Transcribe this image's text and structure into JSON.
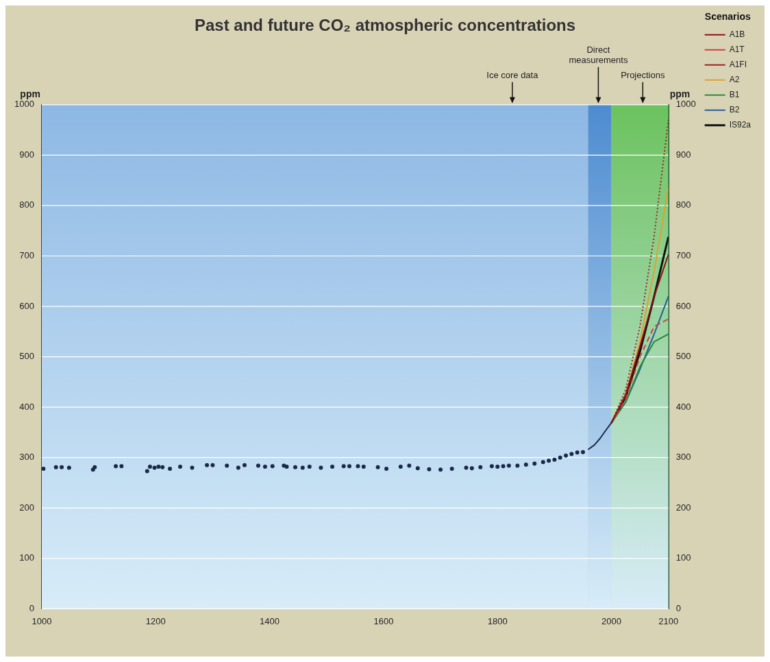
{
  "chart_data": {
    "type": "line",
    "title": "Past and future CO₂ atmospheric concentrations",
    "ylabel": "ppm",
    "y2label": "ppm",
    "legend_title": "Scenarios",
    "xlim": [
      1000,
      2100
    ],
    "xticks": [
      1000,
      1200,
      1400,
      1600,
      1800,
      2000,
      2100
    ],
    "ylim": [
      0,
      1000
    ],
    "yticks": [
      0,
      100,
      200,
      300,
      400,
      500,
      600,
      700,
      800,
      900,
      1000
    ],
    "y2lim": [
      0,
      1000
    ],
    "y2ticks": [
      0,
      100,
      200,
      300,
      400,
      500,
      600,
      700,
      800,
      900,
      1000
    ],
    "grid": "y",
    "legend": "top right",
    "bands": [
      {
        "axis": "x",
        "from": 1000,
        "to": 1959,
        "color": "#8db8e4"
      },
      {
        "axis": "x",
        "from": 1959,
        "to": 2000,
        "color": "#4d8bd0"
      },
      {
        "axis": "x",
        "from": 2000,
        "to": 2100,
        "color": "#6cc25e"
      }
    ],
    "annotations": [
      {
        "text": "Ice core data",
        "x": 1826,
        "y": 1000
      },
      {
        "text": "Direct measurements",
        "x": 1977,
        "y": 1000
      },
      {
        "text": "Projections",
        "x": 2055,
        "y": 1000
      }
    ],
    "series": [
      {
        "type": "scatter",
        "color": "#1a2a4a",
        "marker": "circle",
        "x": [
          1003,
          1025,
          1035,
          1048,
          1090,
          1093,
          1130,
          1140,
          1185,
          1190,
          1198,
          1205,
          1212,
          1225,
          1243,
          1264,
          1290,
          1300,
          1325,
          1345,
          1356,
          1380,
          1392,
          1405,
          1425,
          1430,
          1445,
          1458,
          1470,
          1490,
          1510,
          1530,
          1540,
          1555,
          1565,
          1590,
          1605,
          1630,
          1645,
          1660,
          1680,
          1700,
          1720,
          1745,
          1755,
          1770,
          1790,
          1800,
          1810,
          1820,
          1835,
          1850,
          1865,
          1880,
          1890,
          1900,
          1910,
          1920,
          1930,
          1940,
          1950
        ],
        "values": [
          278,
          281,
          281,
          280,
          276,
          281,
          283,
          283,
          273,
          282,
          280,
          282,
          281,
          278,
          282,
          280,
          285,
          285,
          284,
          280,
          285,
          284,
          282,
          283,
          284,
          282,
          281,
          280,
          282,
          280,
          282,
          283,
          283,
          283,
          282,
          281,
          278,
          282,
          284,
          279,
          277,
          276,
          278,
          280,
          279,
          281,
          283,
          282,
          283,
          284,
          284,
          286,
          288,
          291,
          294,
          296,
          300,
          304,
          307,
          310,
          311
        ]
      },
      {
        "type": "line",
        "color": "#1a2a4a",
        "marker": "none",
        "line_style": "solid",
        "x": [
          1959,
          1970,
          1980,
          1990,
          2000
        ],
        "values": [
          316,
          325,
          338,
          354,
          369
        ]
      },
      {
        "name": "A1B",
        "type": "line",
        "color": "#8b1010",
        "marker": "none",
        "line_style": "solid",
        "x": [
          2000,
          2025,
          2050,
          2075,
          2100
        ],
        "values": [
          369,
          425,
          520,
          620,
          703
        ]
      },
      {
        "name": "A1T",
        "type": "line",
        "color": "#d04040",
        "marker": "none",
        "line_style": "dashed",
        "x": [
          2000,
          2025,
          2050,
          2075,
          2100
        ],
        "values": [
          369,
          415,
          500,
          560,
          575
        ]
      },
      {
        "name": "A1FI",
        "type": "line",
        "color": "#a02020",
        "marker": "none",
        "line_style": "dotted",
        "x": [
          2000,
          2025,
          2050,
          2075,
          2100
        ],
        "values": [
          369,
          435,
          560,
          740,
          970
        ]
      },
      {
        "name": "A2",
        "type": "line",
        "color": "#e0a030",
        "marker": "none",
        "line_style": "solid",
        "x": [
          2000,
          2025,
          2050,
          2075,
          2100
        ],
        "values": [
          369,
          425,
          530,
          670,
          836
        ]
      },
      {
        "name": "B1",
        "type": "line",
        "color": "#2a8a3a",
        "marker": "none",
        "line_style": "solid",
        "x": [
          2000,
          2025,
          2050,
          2075,
          2100
        ],
        "values": [
          369,
          410,
          480,
          530,
          545
        ]
      },
      {
        "name": "B2",
        "type": "line",
        "color": "#2a5a9a",
        "marker": "none",
        "line_style": "solid",
        "x": [
          2000,
          2025,
          2050,
          2075,
          2100
        ],
        "values": [
          369,
          410,
          475,
          545,
          620
        ]
      },
      {
        "name": "IS92a",
        "type": "line",
        "color": "#111111",
        "marker": "none",
        "line_style": "solid",
        "x": [
          2000,
          2025,
          2050,
          2075,
          2100
        ],
        "values": [
          369,
          420,
          510,
          620,
          738
        ]
      }
    ]
  }
}
